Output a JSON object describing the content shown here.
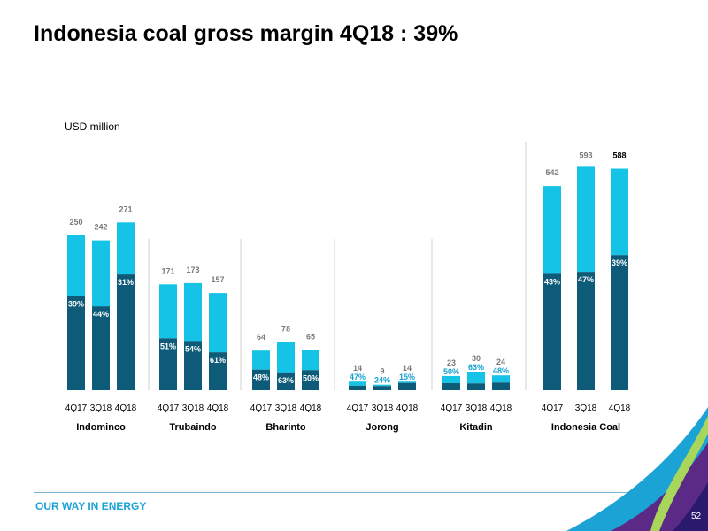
{
  "slide": {
    "title": "Indonesia coal gross margin 4Q18 : 39%",
    "unit_label": "USD million",
    "tagline": "OUR WAY IN ENERGY",
    "page_number": "52"
  },
  "colors": {
    "cost": "#0d5b78",
    "margin_bar": "#14c3e6",
    "value_label": "#7a7a7a",
    "pct_label_light": "#ffffff",
    "pct_label_dark": "#14a0d0",
    "tagline": "#1ba3d6",
    "separator": "#d0d0d0"
  },
  "chart_data": {
    "type": "bar",
    "stacked": true,
    "periods": [
      "4Q17",
      "3Q18",
      "4Q18"
    ],
    "groups": [
      {
        "name": "Indominco",
        "totals": [
          250,
          242,
          271
        ],
        "margin_pct": [
          "39%",
          "44%",
          "31%"
        ]
      },
      {
        "name": "Trubaindo",
        "totals": [
          171,
          173,
          157
        ],
        "margin_pct": [
          "51%",
          "54%",
          "61%"
        ]
      },
      {
        "name": "Bharinto",
        "totals": [
          64,
          78,
          65
        ],
        "margin_pct": [
          "48%",
          "63%",
          "50%"
        ]
      },
      {
        "name": "Jorong",
        "totals": [
          14,
          9,
          14
        ],
        "margin_pct": [
          "47%",
          "24%",
          "15%"
        ]
      },
      {
        "name": "Kitadin",
        "totals": [
          23,
          30,
          24
        ],
        "margin_pct": [
          "50%",
          "63%",
          "48%"
        ]
      },
      {
        "name": "Indonesia Coal",
        "totals": [
          542,
          593,
          588
        ],
        "margin_pct": [
          "43%",
          "47%",
          "39%"
        ]
      }
    ]
  }
}
